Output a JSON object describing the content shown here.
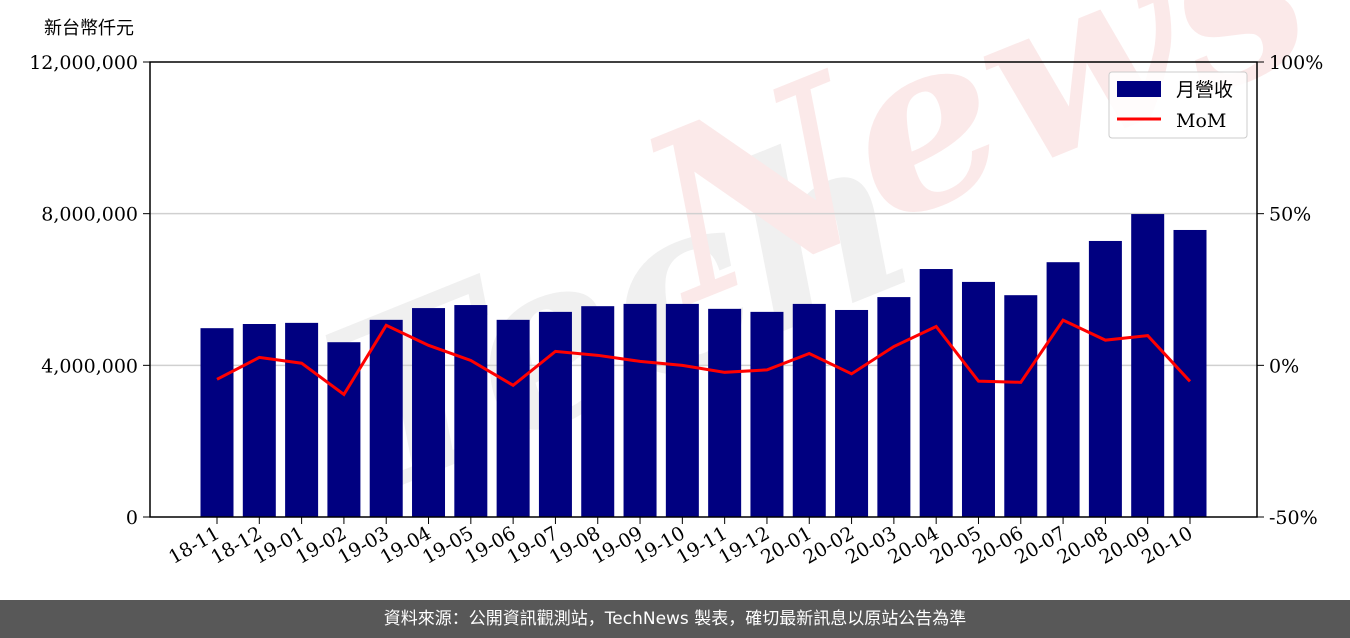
{
  "chart_data": {
    "type": "bar",
    "title": "",
    "ylabel": "新台幣仟元",
    "ylim": [
      0,
      12000000
    ],
    "y_ticks": [
      "0",
      "4,000,000",
      "8,000,000",
      "12,000,000"
    ],
    "y2lim": [
      -50,
      100
    ],
    "y2_ticks": [
      "-50%",
      "0%",
      "50%",
      "100%"
    ],
    "grid": "horizontal",
    "legend_position": "top-right",
    "categories": [
      "18-11",
      "18-12",
      "19-01",
      "19-02",
      "19-03",
      "19-04",
      "19-05",
      "19-06",
      "19-07",
      "19-08",
      "19-09",
      "19-10",
      "19-11",
      "19-12",
      "20-01",
      "20-02",
      "20-03",
      "20-04",
      "20-05",
      "20-06",
      "20-07",
      "20-08",
      "20-09",
      "20-10"
    ],
    "series": [
      {
        "name": "月營收",
        "type": "bar",
        "axis": "left",
        "color": "#000080",
        "values": [
          4980000,
          5090000,
          5120000,
          4610000,
          5200000,
          5510000,
          5590000,
          5200000,
          5410000,
          5560000,
          5620000,
          5620000,
          5490000,
          5410000,
          5620000,
          5460000,
          5800000,
          6540000,
          6200000,
          5850000,
          6720000,
          7280000,
          7990000,
          7570000
        ]
      },
      {
        "name": "MoM",
        "type": "line",
        "axis": "right",
        "color": "#ff0000",
        "values": [
          -4.6,
          2.6,
          0.7,
          -9.6,
          13.2,
          6.6,
          1.6,
          -6.6,
          4.6,
          3.3,
          1.3,
          0.0,
          -2.3,
          -1.5,
          3.9,
          -2.8,
          6.2,
          12.8,
          -5.2,
          -5.6,
          14.9,
          8.3,
          9.8,
          -5.3
        ]
      }
    ]
  },
  "watermark": "TechNews",
  "footer": {
    "text": "資料來源：公開資訊觀測站，TechNews 製表，確切最新訊息以原站公告為準"
  }
}
